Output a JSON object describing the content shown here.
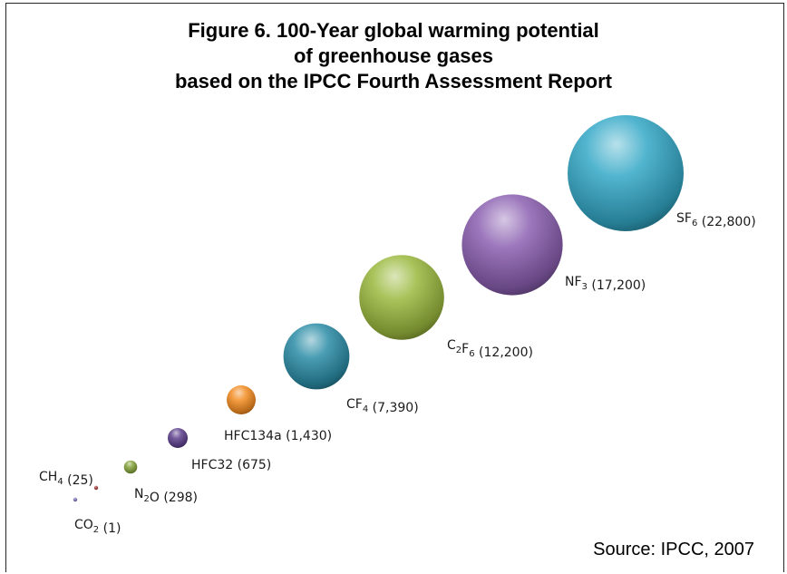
{
  "title": {
    "line1": "Figure 6. 100-Year global warming potential",
    "line2": "of greenhouse gases",
    "line3": "based on the IPCC Fourth Assessment Report"
  },
  "source": "Source: IPCC, 2007",
  "chart_data": {
    "type": "bubble",
    "title": "Figure 6. 100-Year global warming potential of greenhouse gases based on the IPCC Fourth Assessment Report",
    "xlabel": "",
    "ylabel": "",
    "grid": false,
    "legend": "none",
    "points": [
      {
        "gas": "CO",
        "sub": "2",
        "value": 1,
        "label": "(1)",
        "color": "#7a73b8"
      },
      {
        "gas": "CH",
        "sub": "4",
        "value": 25,
        "label": "(25)",
        "color": "#a33a3a"
      },
      {
        "gas": "N",
        "sub": "2",
        "gas_suffix": "O",
        "value": 298,
        "label": "(298)",
        "color": "#84a33a"
      },
      {
        "gas": "HFC32",
        "sub": "",
        "value": 675,
        "label": "(675)",
        "color": "#5d3f8c"
      },
      {
        "gas": "HFC134a",
        "sub": "",
        "value": 1430,
        "label": "(1,430)",
        "color": "#f28a20"
      },
      {
        "gas": "CF",
        "sub": "4",
        "value": 7390,
        "label": "(7,390)",
        "color": "#2a8ca6"
      },
      {
        "gas": "C",
        "sub": "2",
        "gas_suffix": "F",
        "sub2": "6",
        "value": 12200,
        "label": "(12,200)",
        "color": "#9ab83d"
      },
      {
        "gas": "NF",
        "sub": "3",
        "value": 17200,
        "label": "(17,200)",
        "color": "#8a5fb0"
      },
      {
        "gas": "SF",
        "sub": "6",
        "value": 22800,
        "label": "(22,800)",
        "color": "#33a8c7"
      }
    ]
  }
}
